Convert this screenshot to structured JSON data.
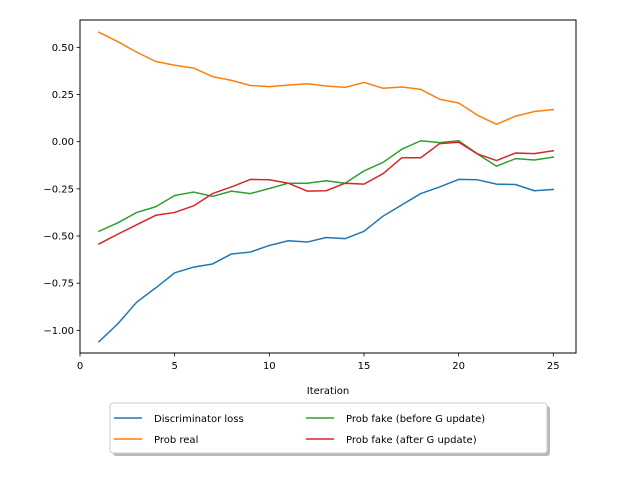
{
  "chart_data": {
    "type": "line",
    "title": "",
    "xlabel": "Iteration",
    "ylabel": "",
    "xlim": [
      0,
      26.2
    ],
    "ylim": [
      -1.12,
      0.645
    ],
    "grid": false,
    "legend_position": "bottom-center",
    "x_ticks": [
      0,
      5,
      10,
      15,
      20,
      25
    ],
    "x_tick_labels": [
      "0",
      "5",
      "10",
      "15",
      "20",
      "25"
    ],
    "y_ticks": [
      0.5,
      0.25,
      0.0,
      -0.25,
      -0.5,
      -0.75,
      -1.0
    ],
    "y_tick_labels": [
      "0.50",
      "0.25",
      "0.00",
      "−0.25",
      "−0.50",
      "−0.75",
      "−1.00"
    ],
    "x": [
      1,
      2,
      3,
      4,
      5,
      6,
      7,
      8,
      9,
      10,
      11,
      12,
      13,
      14,
      15,
      16,
      17,
      18,
      19,
      20,
      21,
      22,
      23,
      24,
      25
    ],
    "series": [
      {
        "name": "Discriminator loss",
        "color": "#1f77b4",
        "values": [
          -1.06,
          -0.965,
          -0.85,
          -0.775,
          -0.695,
          -0.665,
          -0.648,
          -0.595,
          -0.585,
          -0.55,
          -0.525,
          -0.532,
          -0.508,
          -0.514,
          -0.475,
          -0.395,
          -0.335,
          -0.275,
          -0.24,
          -0.2,
          -0.202,
          -0.225,
          -0.227,
          -0.26,
          -0.253
        ]
      },
      {
        "name": "Prob real",
        "color": "#ff7f0e",
        "values": [
          0.58,
          0.53,
          0.474,
          0.425,
          0.405,
          0.39,
          0.345,
          0.325,
          0.298,
          0.292,
          0.3,
          0.307,
          0.295,
          0.288,
          0.314,
          0.283,
          0.29,
          0.277,
          0.225,
          0.205,
          0.14,
          0.092,
          0.135,
          0.16,
          0.17
        ]
      },
      {
        "name": "Prob fake (before G update)",
        "color": "#2ca02c",
        "values": [
          -0.475,
          -0.43,
          -0.375,
          -0.345,
          -0.285,
          -0.267,
          -0.29,
          -0.262,
          -0.275,
          -0.248,
          -0.22,
          -0.22,
          -0.207,
          -0.22,
          -0.155,
          -0.11,
          -0.04,
          0.005,
          -0.005,
          0.005,
          -0.065,
          -0.13,
          -0.09,
          -0.097,
          -0.082
        ]
      },
      {
        "name": "Prob fake (after G update)",
        "color": "#d62728",
        "values": [
          -0.542,
          -0.49,
          -0.44,
          -0.39,
          -0.375,
          -0.34,
          -0.275,
          -0.24,
          -0.2,
          -0.202,
          -0.22,
          -0.262,
          -0.26,
          -0.22,
          -0.225,
          -0.17,
          -0.085,
          -0.085,
          -0.01,
          -0.003,
          -0.065,
          -0.1,
          -0.06,
          -0.063,
          -0.048
        ]
      }
    ]
  }
}
